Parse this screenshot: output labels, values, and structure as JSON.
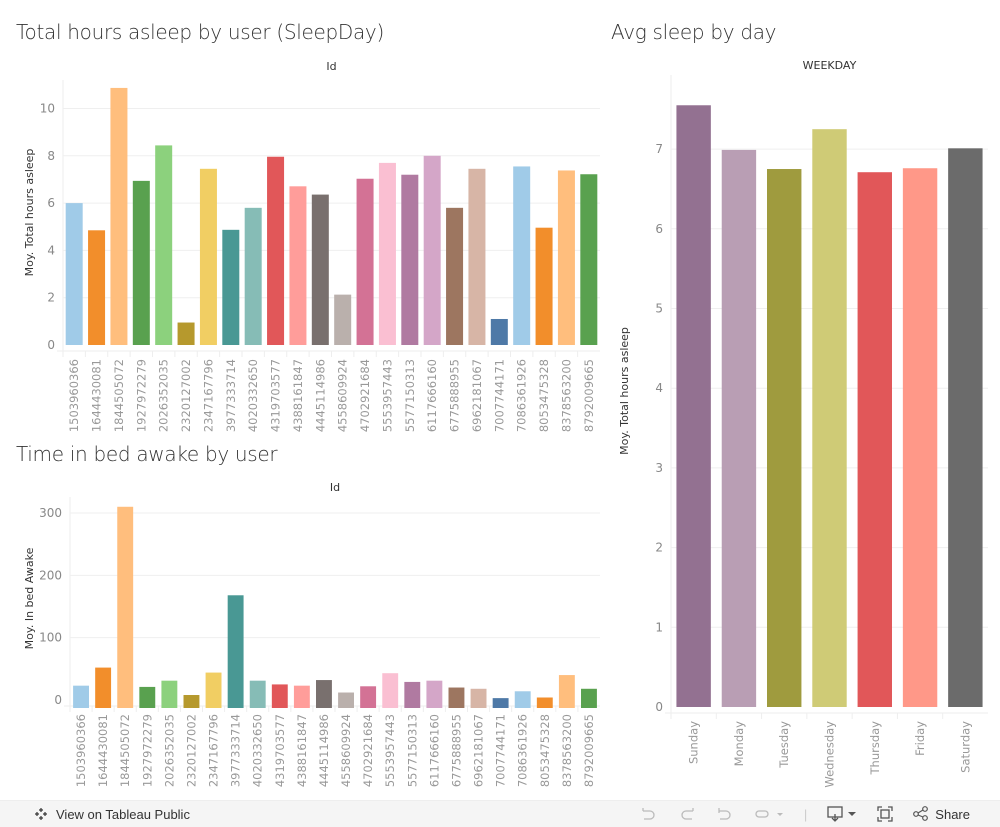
{
  "chart_data": [
    {
      "type": "bar",
      "title": "Total hours asleep by user (SleepDay)",
      "header": "Id",
      "xlabel": "Id",
      "ylabel": "Moy. Total hours asleep",
      "ylim": [
        0,
        11.5
      ],
      "yticks": [
        0,
        2,
        4,
        6,
        8,
        10
      ],
      "grid": true,
      "categories": [
        "1503960366",
        "1644430081",
        "1844505072",
        "1927972279",
        "2026352035",
        "2320127002",
        "2347167796",
        "3977333714",
        "4020332650",
        "4319703577",
        "4388161847",
        "4445114986",
        "4558609924",
        "4702921684",
        "5553957443",
        "5577150313",
        "6117666160",
        "6775888955",
        "6962181067",
        "7007744171",
        "7086361926",
        "8053475328",
        "8378563200",
        "8792009665"
      ],
      "values": [
        6.0,
        4.85,
        10.87,
        6.94,
        8.44,
        0.95,
        7.45,
        4.87,
        5.8,
        7.96,
        6.71,
        6.36,
        2.13,
        7.03,
        7.7,
        7.2,
        8.0,
        5.8,
        7.45,
        1.1,
        7.55,
        4.96,
        7.38,
        7.22
      ],
      "colors": [
        "#a0cbe8",
        "#f28e2b",
        "#ffbe7d",
        "#59a14f",
        "#8cd17d",
        "#b6992d",
        "#f1ce63",
        "#499894",
        "#86bcb6",
        "#e15759",
        "#ff9d9a",
        "#79706e",
        "#bab0ac",
        "#d37295",
        "#fabfd2",
        "#b07aa1",
        "#d4a6c8",
        "#9d7660",
        "#d7b5a6",
        "#4e79a7",
        "#a0cbe8",
        "#f28e2b",
        "#ffbe7d",
        "#59a14f"
      ]
    },
    {
      "type": "bar",
      "title": "Time in bed awake by user",
      "header": "Id",
      "xlabel": "Id",
      "ylabel": "Moy. In bed Awake",
      "ylim": [
        -5,
        320
      ],
      "yticks": [
        0,
        100,
        200,
        300
      ],
      "grid": true,
      "categories": [
        "1503960366",
        "1644430081",
        "1844505072",
        "1927972279",
        "2026352035",
        "2320127002",
        "2347167796",
        "3977333714",
        "4020332650",
        "4319703577",
        "4388161847",
        "4445114986",
        "4558609924",
        "4702921684",
        "5553957443",
        "5577150313",
        "6117666160",
        "6775888955",
        "6962181067",
        "7007744171",
        "7086361926",
        "8053475328",
        "8378563200",
        "8792009665"
      ],
      "values": [
        23,
        52,
        310,
        21,
        31,
        8,
        44,
        168,
        31,
        25,
        23,
        32,
        12,
        22,
        43,
        29,
        31,
        20,
        18,
        3,
        14,
        4,
        40,
        18
      ],
      "colors": [
        "#a0cbe8",
        "#f28e2b",
        "#ffbe7d",
        "#59a14f",
        "#8cd17d",
        "#b6992d",
        "#f1ce63",
        "#499894",
        "#86bcb6",
        "#e15759",
        "#ff9d9a",
        "#79706e",
        "#bab0ac",
        "#d37295",
        "#fabfd2",
        "#b07aa1",
        "#d4a6c8",
        "#9d7660",
        "#d7b5a6",
        "#4e79a7",
        "#a0cbe8",
        "#f28e2b",
        "#ffbe7d",
        "#59a14f"
      ]
    },
    {
      "type": "bar",
      "title": "Avg sleep by day",
      "header": "WEEKDAY",
      "xlabel": "WEEKDAY",
      "ylabel": "Moy. Total hours asleep",
      "ylim": [
        0,
        7.8
      ],
      "yticks": [
        0,
        1,
        2,
        3,
        4,
        5,
        6,
        7
      ],
      "grid": true,
      "categories": [
        "Sunday",
        "Monday",
        "Tuesday",
        "Wednesday",
        "Thursday",
        "Friday",
        "Saturday"
      ],
      "values": [
        7.55,
        6.99,
        6.75,
        7.25,
        6.71,
        6.76,
        7.01
      ],
      "colors": [
        "#937191",
        "#b99eb4",
        "#9f9b3e",
        "#cfcb76",
        "#e15759",
        "#ff9888",
        "#6b6b6b"
      ]
    }
  ],
  "footer": {
    "view_label": "View on Tableau Public",
    "share_label": "Share",
    "icons": [
      "tableau-logo-icon",
      "undo-icon",
      "redo-icon",
      "revert-icon",
      "refresh-icon",
      "download-icon",
      "fullscreen-icon",
      "share-icon"
    ]
  }
}
